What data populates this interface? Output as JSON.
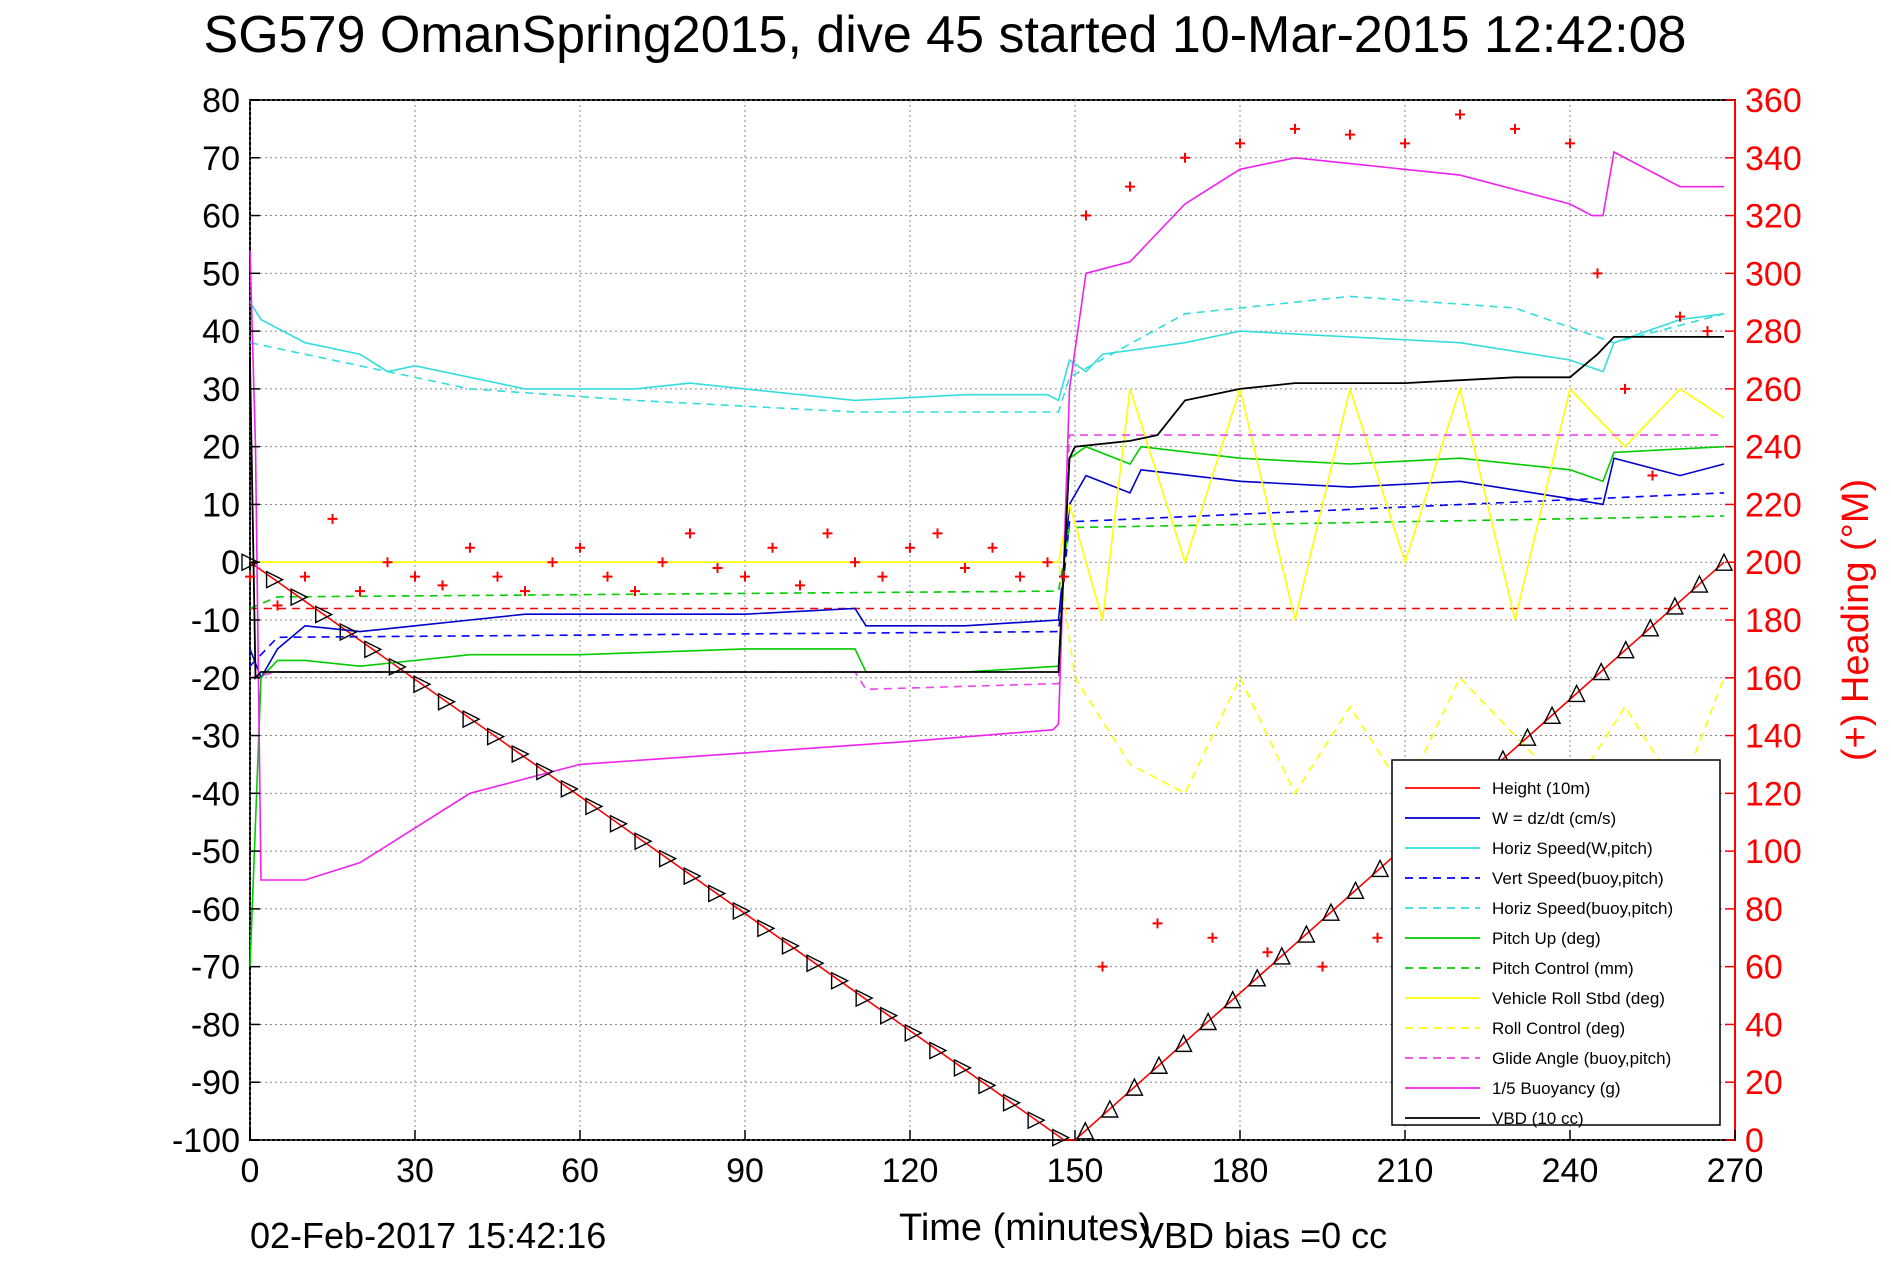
{
  "chart_data": {
    "type": "line",
    "title": "SG579 OmanSpring2015, dive 45 started 10-Mar-2015 12:42:08",
    "xlabel": "Time (minutes)",
    "ylabel": "",
    "ylabel_right": "(+) Heading (°M)",
    "xlim": [
      0,
      270
    ],
    "ylim": [
      -100,
      80
    ],
    "ylim_right": [
      0,
      360
    ],
    "x_ticks": [
      "0",
      "30",
      "60",
      "90",
      "120",
      "150",
      "180",
      "210",
      "240",
      "270"
    ],
    "y_ticks": [
      "80",
      "70",
      "60",
      "50",
      "40",
      "30",
      "20",
      "10",
      "0",
      "-10",
      "-20",
      "-30",
      "-40",
      "-50",
      "-60",
      "-70",
      "-80",
      "-90",
      "-100"
    ],
    "y_right_ticks": [
      "360",
      "340",
      "320",
      "300",
      "280",
      "260",
      "240",
      "220",
      "200",
      "180",
      "160",
      "140",
      "120",
      "100",
      "80",
      "60",
      "40",
      "20",
      "0"
    ],
    "grid": true,
    "legend_position": "bottom-right",
    "series": [
      {
        "name": "Height (10m)",
        "color": "#ff0000",
        "style": "solid",
        "x": [
          0,
          148,
          150,
          268
        ],
        "y": [
          0,
          -100,
          -100,
          0
        ]
      },
      {
        "name": "W = dz/dt (cm/s)",
        "color": "#0000cc",
        "style": "solid",
        "x": [
          0,
          2,
          5,
          10,
          20,
          30,
          40,
          50,
          70,
          90,
          110,
          112,
          130,
          147,
          149,
          152,
          160,
          162,
          180,
          200,
          220,
          240,
          246,
          248,
          260,
          268
        ],
        "y": [
          -15,
          -20,
          -15,
          -11,
          -12,
          -11,
          -10,
          -9,
          -9,
          -9,
          -8,
          -11,
          -11,
          -10,
          10,
          15,
          12,
          16,
          14,
          13,
          14,
          11,
          10,
          18,
          15,
          17
        ]
      },
      {
        "name": "Horiz Speed(W,pitch)",
        "color": "#33dddd",
        "style": "solid",
        "x": [
          0,
          2,
          10,
          20,
          25,
          30,
          40,
          50,
          70,
          80,
          90,
          110,
          130,
          145,
          147,
          149,
          152,
          155,
          170,
          180,
          200,
          220,
          240,
          246,
          248,
          260,
          268
        ],
        "y": [
          45,
          42,
          38,
          36,
          33,
          34,
          32,
          30,
          30,
          31,
          30,
          28,
          29,
          29,
          28,
          35,
          33,
          36,
          38,
          40,
          39,
          38,
          35,
          33,
          38,
          42,
          43
        ]
      },
      {
        "name": "Vert Speed(buoy,pitch)",
        "color": "#0000ff",
        "style": "dashed",
        "x": [
          0,
          5,
          147,
          149,
          268
        ],
        "y": [
          -18,
          -13,
          -12,
          7,
          12
        ]
      },
      {
        "name": "Horiz Speed(buoy,pitch)",
        "color": "#33dddd",
        "style": "dashed",
        "x": [
          0,
          40,
          70,
          110,
          147,
          149,
          170,
          200,
          230,
          248,
          268
        ],
        "y": [
          38,
          30,
          28,
          26,
          26,
          32,
          43,
          46,
          44,
          38,
          43
        ]
      },
      {
        "name": "Pitch Up (deg)",
        "color": "#00cc00",
        "style": "solid",
        "x": [
          0,
          2,
          5,
          10,
          20,
          40,
          60,
          90,
          110,
          112,
          130,
          147,
          149,
          152,
          160,
          162,
          180,
          200,
          220,
          240,
          246,
          248,
          268
        ],
        "y": [
          -70,
          -20,
          -17,
          -17,
          -18,
          -16,
          -16,
          -15,
          -15,
          -19,
          -19,
          -18,
          18,
          20,
          17,
          20,
          18,
          17,
          18,
          16,
          14,
          19,
          20
        ]
      },
      {
        "name": "Pitch Control (mm)",
        "color": "#00cc00",
        "style": "dashed",
        "x": [
          0,
          5,
          147,
          149,
          268
        ],
        "y": [
          -8,
          -6,
          -5,
          6,
          8
        ]
      },
      {
        "name": "Vehicle Roll Stbd (deg)",
        "color": "#ffff00",
        "style": "solid",
        "x": [
          0,
          10,
          30,
          60,
          90,
          120,
          147,
          149,
          155,
          160,
          170,
          180,
          190,
          200,
          210,
          220,
          230,
          240,
          250,
          260,
          268
        ],
        "y": [
          0,
          0,
          0,
          0,
          0,
          0,
          0,
          10,
          -10,
          30,
          0,
          30,
          -10,
          30,
          0,
          30,
          -10,
          30,
          20,
          30,
          25
        ]
      },
      {
        "name": "Roll Control (deg)",
        "color": "#ffff00",
        "style": "dashed",
        "x": [
          0,
          147,
          150,
          160,
          170,
          180,
          190,
          200,
          210,
          220,
          230,
          240,
          250,
          260,
          268
        ],
        "y": [
          0,
          0,
          -20,
          -35,
          -40,
          -20,
          -40,
          -25,
          -40,
          -20,
          -30,
          -40,
          -25,
          -40,
          -20
        ]
      },
      {
        "name": "Glide Angle (buoy,pitch)",
        "color": "#ee44ee",
        "style": "dashed",
        "x": [
          0,
          5,
          40,
          110,
          112,
          147,
          149,
          268
        ],
        "y": [
          -20,
          -19,
          -19,
          -19,
          -22,
          -21,
          22,
          22
        ]
      },
      {
        "name": "1/5 Buoyancy (g)",
        "color": "#ee22ee",
        "style": "solid",
        "x": [
          0,
          1,
          2,
          10,
          20,
          40,
          60,
          90,
          120,
          146,
          147,
          149,
          152,
          160,
          170,
          180,
          190,
          200,
          220,
          240,
          244,
          246,
          248,
          260,
          268
        ],
        "y": [
          54,
          20,
          -55,
          -55,
          -52,
          -40,
          -35,
          -33,
          -31,
          -29,
          -28,
          30,
          50,
          52,
          62,
          68,
          70,
          69,
          67,
          62,
          60,
          60,
          71,
          65,
          65
        ]
      },
      {
        "name": "VBD (10 cc)",
        "color": "#000000",
        "style": "solid",
        "x": [
          0,
          1,
          2,
          147,
          149,
          150,
          160,
          165,
          170,
          180,
          190,
          210,
          230,
          240,
          245,
          248,
          268
        ],
        "y": [
          35,
          -20,
          -19,
          -19,
          18,
          20,
          21,
          22,
          28,
          30,
          31,
          31,
          32,
          32,
          36,
          39,
          39
        ]
      },
      {
        "name": "(+) Heading",
        "color": "#ff0000",
        "style": "markers",
        "axis": "right",
        "x": [
          0,
          5,
          10,
          15,
          20,
          25,
          30,
          35,
          40,
          45,
          50,
          55,
          60,
          65,
          70,
          75,
          80,
          85,
          90,
          95,
          100,
          105,
          110,
          115,
          120,
          125,
          130,
          135,
          140,
          145,
          148,
          152,
          155,
          160,
          165,
          170,
          175,
          180,
          185,
          190,
          195,
          200,
          205,
          210,
          215,
          220,
          225,
          230,
          235,
          240,
          245,
          250,
          255,
          260,
          265
        ],
        "y": [
          195,
          185,
          195,
          215,
          190,
          200,
          195,
          192,
          205,
          195,
          190,
          200,
          205,
          195,
          190,
          200,
          210,
          198,
          195,
          205,
          192,
          210,
          200,
          195,
          205,
          210,
          198,
          205,
          195,
          200,
          195,
          320,
          60,
          330,
          75,
          340,
          70,
          345,
          65,
          350,
          60,
          348,
          70,
          345,
          65,
          355,
          60,
          350,
          70,
          345,
          300,
          260,
          230,
          285,
          280
        ]
      }
    ],
    "markers_on_height": {
      "name": "Height markers",
      "color": "#000000",
      "shape": "triangle"
    },
    "reference_lines": [
      {
        "axis": "left",
        "y": -8,
        "color": "#ff0000",
        "style": "dashed"
      }
    ]
  },
  "footer": {
    "timestamp": "02-Feb-2017 15:42:16",
    "vbd_bias": "VBD bias =0 cc"
  }
}
